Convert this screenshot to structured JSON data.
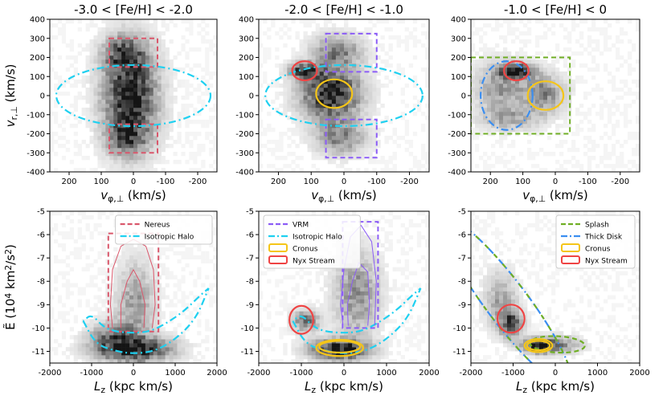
{
  "chart_data": [
    {
      "type": "heatmap",
      "title": "-3.0 < [Fe/H] < -2.0",
      "xlabel": "v_{φ,⊥} (km/s)",
      "ylabel": "v_{r,⊥} (km/s)",
      "xlim": [
        260,
        -260
      ],
      "ylim": [
        -400,
        400
      ],
      "xticks": [
        200,
        100,
        0,
        -100,
        -200
      ],
      "yticks": [
        -400,
        -300,
        -200,
        -100,
        0,
        100,
        200,
        300,
        400
      ],
      "density_blobs": [
        {
          "x": 10,
          "y": 0,
          "sx": 55,
          "sy": 170,
          "w": 1.0
        },
        {
          "x": 30,
          "y": 220,
          "sx": 40,
          "sy": 60,
          "w": 0.6
        },
        {
          "x": 20,
          "y": -220,
          "sx": 40,
          "sy": 60,
          "w": 0.5
        }
      ],
      "overlays": [
        {
          "shape": "rect",
          "x": [
            75,
            -75
          ],
          "y": [
            150,
            300
          ],
          "color": "#d9576b"
        },
        {
          "shape": "rect",
          "x": [
            75,
            -75
          ],
          "y": [
            -300,
            -150
          ],
          "color": "#d9576b"
        },
        {
          "shape": "ellipse",
          "cx": 0,
          "cy": 0,
          "rx": 240,
          "ry": 160,
          "color": "#1fd0f0"
        }
      ]
    },
    {
      "type": "heatmap",
      "title": "-2.0 < [Fe/H] < -1.0",
      "xlabel": "v_{φ,⊥} (km/s)",
      "ylabel": "",
      "xlim": [
        260,
        -260
      ],
      "ylim": [
        -400,
        400
      ],
      "xticks": [
        200,
        100,
        0,
        -100,
        -200
      ],
      "yticks": [
        -400,
        -300,
        -200,
        -100,
        0,
        100,
        200,
        300,
        400
      ],
      "density_blobs": [
        {
          "x": 40,
          "y": 10,
          "sx": 60,
          "sy": 90,
          "w": 1.0
        },
        {
          "x": 120,
          "y": 130,
          "sx": 30,
          "sy": 25,
          "w": 0.9
        },
        {
          "x": 20,
          "y": 230,
          "sx": 50,
          "sy": 60,
          "w": 0.5
        },
        {
          "x": 10,
          "y": -220,
          "sx": 50,
          "sy": 60,
          "w": 0.5
        }
      ],
      "overlays": [
        {
          "shape": "rect",
          "x": [
            55,
            -100
          ],
          "y": [
            -325,
            -125
          ],
          "color": "#8b5cf6"
        },
        {
          "shape": "rect",
          "x": [
            55,
            -100
          ],
          "y": [
            125,
            325
          ],
          "color": "#8b5cf6"
        },
        {
          "shape": "ellipse",
          "cx": 0,
          "cy": 0,
          "rx": 240,
          "ry": 160,
          "color": "#1fd0f0"
        },
        {
          "shape": "ellipse",
          "cx": 30,
          "cy": 10,
          "rx": 55,
          "ry": 75,
          "color": "#f5c518"
        },
        {
          "shape": "ellipse",
          "cx": 120,
          "cy": 130,
          "rx": 38,
          "ry": 50,
          "color": "#ef4444"
        }
      ]
    },
    {
      "type": "heatmap",
      "title": "-1.0 < [Fe/H] < 0",
      "xlabel": "v_{φ,⊥} (km/s)",
      "ylabel": "",
      "xlim": [
        260,
        -260
      ],
      "ylim": [
        -400,
        400
      ],
      "xticks": [
        200,
        100,
        0,
        -100,
        -200
      ],
      "yticks": [
        -400,
        -300,
        -200,
        -100,
        0,
        100,
        200,
        300,
        400
      ],
      "density_blobs": [
        {
          "x": 120,
          "y": 130,
          "sx": 35,
          "sy": 25,
          "w": 1.0
        },
        {
          "x": 170,
          "y": 40,
          "sx": 50,
          "sy": 90,
          "w": 0.4
        },
        {
          "x": 40,
          "y": 10,
          "sx": 45,
          "sy": 70,
          "w": 0.5
        },
        {
          "x": 140,
          "y": -120,
          "sx": 60,
          "sy": 40,
          "w": 0.3
        }
      ],
      "overlays": [
        {
          "shape": "rect",
          "x": [
            260,
            -45
          ],
          "y": [
            -200,
            200
          ],
          "color": "#6fae24"
        },
        {
          "shape": "ellipse",
          "cx": 150,
          "cy": 0,
          "rx": 80,
          "ry": 180,
          "color": "#3b8ef0"
        },
        {
          "shape": "ellipse",
          "cx": 30,
          "cy": 0,
          "rx": 55,
          "ry": 75,
          "color": "#f5c518"
        },
        {
          "shape": "ellipse",
          "cx": 120,
          "cy": 130,
          "rx": 38,
          "ry": 50,
          "color": "#ef4444"
        }
      ]
    },
    {
      "type": "heatmap",
      "title": "",
      "xlabel": "L_z (kpc km/s)",
      "ylabel": "Ẽ (10^4 km^2/s^2)",
      "xlim": [
        -2000,
        2000
      ],
      "ylim": [
        -11.5,
        -5
      ],
      "xticks": [
        -2000,
        -1000,
        0,
        1000,
        2000
      ],
      "yticks": [
        -11,
        -10,
        -9,
        -8,
        -7,
        -6,
        -5
      ],
      "density_blobs": [
        {
          "x": 0,
          "y": -10.9,
          "sx": 600,
          "sy": 0.35,
          "w": 1.0
        },
        {
          "x": -500,
          "y": -10.3,
          "sx": 350,
          "sy": 0.4,
          "w": 0.5
        },
        {
          "x": 50,
          "y": -9.0,
          "sx": 300,
          "sy": 1.2,
          "w": 0.4
        }
      ],
      "overlays": [
        {
          "shape": "rect",
          "x": [
            -600,
            600
          ],
          "y": [
            -10.15,
            -5.95
          ],
          "color": "#d9576b"
        },
        {
          "shape": "halo",
          "color": "#1fd0f0"
        },
        {
          "shape": "contour",
          "color": "#d9576b",
          "points": [
            [
              -500,
              -10.0
            ],
            [
              -550,
              -9
            ],
            [
              -500,
              -7.5
            ],
            [
              -300,
              -6.5
            ],
            [
              0,
              -6.2
            ],
            [
              300,
              -6.5
            ],
            [
              480,
              -7.5
            ],
            [
              520,
              -9
            ],
            [
              450,
              -10.0
            ]
          ]
        },
        {
          "shape": "contour",
          "color": "#d9576b",
          "points": [
            [
              -300,
              -10.0
            ],
            [
              -300,
              -9
            ],
            [
              -150,
              -8
            ],
            [
              0,
              -7.5
            ],
            [
              150,
              -8
            ],
            [
              280,
              -9
            ],
            [
              250,
              -10.0
            ]
          ]
        }
      ],
      "legend": {
        "placement": "top-right",
        "entries": [
          {
            "label": "Nereus",
            "color": "#d9576b",
            "style": "dash"
          },
          {
            "label": "Isotropic Halo",
            "color": "#1fd0f0",
            "style": "dashdot"
          }
        ]
      }
    },
    {
      "type": "heatmap",
      "title": "",
      "xlabel": "L_z (kpc km/s)",
      "ylabel": "",
      "xlim": [
        -2000,
        2000
      ],
      "ylim": [
        -11.5,
        -5
      ],
      "xticks": [
        -2000,
        -1000,
        0,
        1000,
        2000
      ],
      "yticks": [
        -11,
        -10,
        -9,
        -8,
        -7,
        -6,
        -5
      ],
      "density_blobs": [
        {
          "x": -100,
          "y": -10.9,
          "sx": 450,
          "sy": 0.3,
          "w": 1.0
        },
        {
          "x": -900,
          "y": -9.7,
          "sx": 200,
          "sy": 0.3,
          "w": 0.6
        },
        {
          "x": 300,
          "y": -8.5,
          "sx": 350,
          "sy": 1.2,
          "w": 0.45
        }
      ],
      "overlays": [
        {
          "shape": "rect",
          "x": [
            -30,
            800
          ],
          "y": [
            -10.0,
            -5.45
          ],
          "color": "#8b5cf6"
        },
        {
          "shape": "halo",
          "color": "#1fd0f0"
        },
        {
          "shape": "ellipse",
          "cx": -100,
          "cy": -10.85,
          "rx": 550,
          "ry": 0.35,
          "color": "#f5c518"
        },
        {
          "shape": "ellipse",
          "cx": -100,
          "cy": -10.8,
          "rx": 480,
          "ry": 0.25,
          "color": "#f5c518"
        },
        {
          "shape": "ellipse",
          "cx": -1000,
          "cy": -9.65,
          "rx": 280,
          "ry": 0.6,
          "color": "#ef4444"
        },
        {
          "shape": "contour",
          "color": "#8b5cf6",
          "points": [
            [
              -20,
              -9.9
            ],
            [
              -80,
              -9
            ],
            [
              0,
              -7.5
            ],
            [
              150,
              -6.1
            ],
            [
              400,
              -5.6
            ],
            [
              650,
              -6.3
            ],
            [
              760,
              -8
            ],
            [
              720,
              -9.9
            ]
          ]
        },
        {
          "shape": "contour",
          "color": "#8b5cf6",
          "points": [
            [
              100,
              -9.9
            ],
            [
              80,
              -9
            ],
            [
              200,
              -8
            ],
            [
              350,
              -7.2
            ],
            [
              560,
              -7.6
            ],
            [
              600,
              -9
            ],
            [
              560,
              -9.9
            ]
          ]
        }
      ],
      "legend": {
        "placement": "top-left",
        "entries": [
          {
            "label": "VRM",
            "color": "#8b5cf6",
            "style": "dash"
          },
          {
            "label": "Isotropic Halo",
            "color": "#1fd0f0",
            "style": "dashdot"
          },
          {
            "label": "Cronus",
            "color": "#f5c518",
            "style": "box"
          },
          {
            "label": "Nyx Stream",
            "color": "#ef4444",
            "style": "box"
          }
        ]
      }
    },
    {
      "type": "heatmap",
      "title": "",
      "xlabel": "L_z (kpc km/s)",
      "ylabel": "",
      "xlim": [
        -2000,
        2000
      ],
      "ylim": [
        -11.5,
        -5
      ],
      "xticks": [
        -2000,
        -1000,
        0,
        1000,
        2000
      ],
      "yticks": [
        -11,
        -10,
        -9,
        -8,
        -7,
        -6,
        -5
      ],
      "density_blobs": [
        {
          "x": -400,
          "y": -10.75,
          "sx": 250,
          "sy": 0.2,
          "w": 1.0
        },
        {
          "x": -1050,
          "y": -9.8,
          "sx": 180,
          "sy": 0.4,
          "w": 0.7
        },
        {
          "x": -1300,
          "y": -8.8,
          "sx": 250,
          "sy": 0.8,
          "w": 0.35
        },
        {
          "x": 100,
          "y": -10.7,
          "sx": 350,
          "sy": 0.25,
          "w": 0.4
        }
      ],
      "overlays": [
        {
          "shape": "thickdisk",
          "color": "#3b8ef0"
        },
        {
          "shape": "thickdisk",
          "color": "#6fae24",
          "dashed": true
        },
        {
          "shape": "ellipse",
          "cx": 50,
          "cy": -10.7,
          "rx": 650,
          "ry": 0.35,
          "rot": 3,
          "color": "#6fae24",
          "dashed": true
        },
        {
          "shape": "ellipse",
          "cx": -400,
          "cy": -10.75,
          "rx": 330,
          "ry": 0.28,
          "color": "#f5c518"
        },
        {
          "shape": "ellipse",
          "cx": -400,
          "cy": -10.75,
          "rx": 270,
          "ry": 0.2,
          "color": "#f5c518"
        },
        {
          "shape": "ellipse",
          "cx": -1050,
          "cy": -9.6,
          "rx": 320,
          "ry": 0.6,
          "color": "#ef4444"
        }
      ],
      "legend": {
        "placement": "top-right",
        "entries": [
          {
            "label": "Splash",
            "color": "#6fae24",
            "style": "dash"
          },
          {
            "label": "Thick Disk",
            "color": "#3b8ef0",
            "style": "dashdot"
          },
          {
            "label": "Cronus",
            "color": "#f5c518",
            "style": "box"
          },
          {
            "label": "Nyx Stream",
            "color": "#ef4444",
            "style": "box"
          }
        ]
      }
    }
  ]
}
